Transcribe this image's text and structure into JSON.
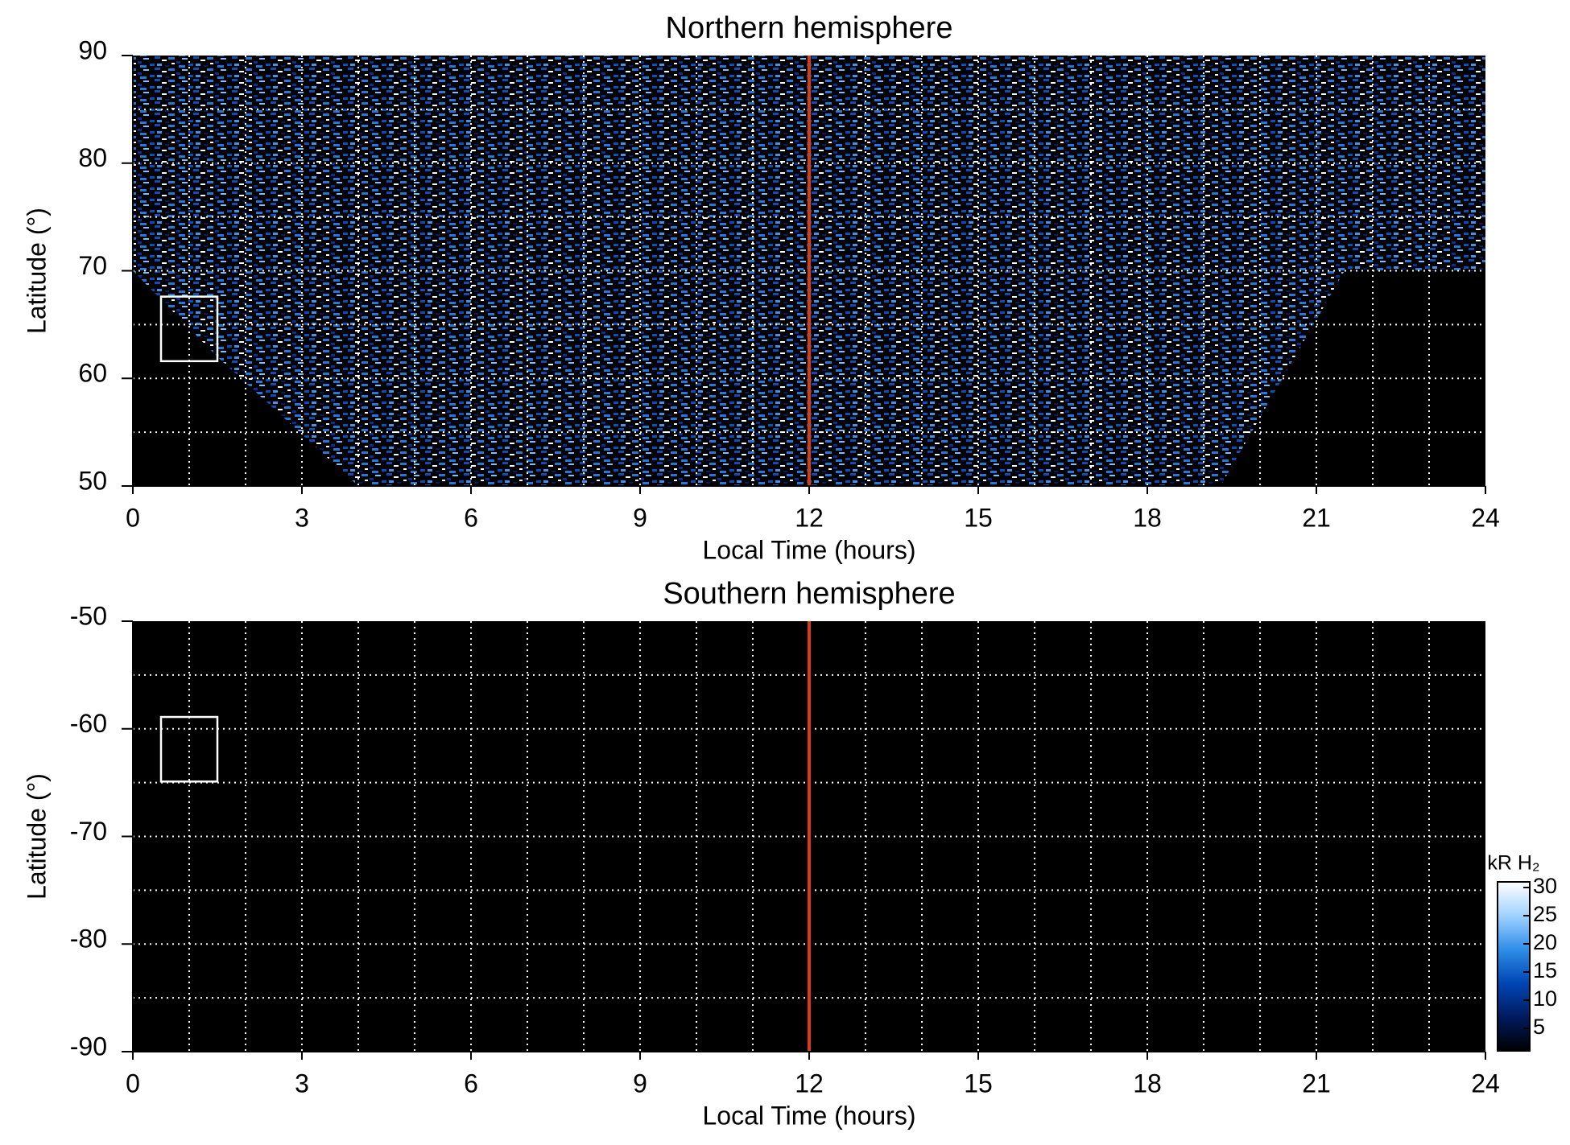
{
  "chart_data": [
    {
      "type": "heatmap",
      "title": "Northern hemisphere",
      "xlabel": "Local Time (hours)",
      "ylabel": "Latitude (°)",
      "xlim": [
        0,
        24
      ],
      "xticks": [
        0,
        3,
        6,
        9,
        12,
        15,
        18,
        21,
        24
      ],
      "ylim": [
        50,
        90
      ],
      "yticks": [
        50,
        60,
        70,
        80,
        90
      ],
      "xgrid": [
        1,
        2,
        3,
        4,
        5,
        6,
        7,
        8,
        9,
        10,
        11,
        12,
        13,
        14,
        15,
        16,
        17,
        18,
        19,
        20,
        21,
        22,
        23
      ],
      "ygrid": [
        55,
        60,
        65,
        70,
        75,
        80,
        85
      ],
      "coverage": [
        [
          0,
          70
        ],
        [
          1.5,
          62
        ],
        [
          4,
          50
        ],
        [
          19.3,
          50
        ],
        [
          21.5,
          70
        ],
        [
          24,
          70
        ],
        [
          24,
          90
        ],
        [
          0,
          90
        ]
      ],
      "vline": {
        "x": 12,
        "color": "#d93a1a"
      },
      "box": {
        "x": [
          0.5,
          1.5
        ],
        "y": [
          61.6,
          67.6
        ],
        "color": "#ffffff"
      }
    },
    {
      "type": "heatmap",
      "title": "Southern hemisphere",
      "xlabel": "Local Time (hours)",
      "ylabel": "Latitude (°)",
      "xlim": [
        0,
        24
      ],
      "xticks": [
        0,
        3,
        6,
        9,
        12,
        15,
        18,
        21,
        24
      ],
      "ylim": [
        -90,
        -50
      ],
      "yticks": [
        -90,
        -80,
        -70,
        -60,
        -50
      ],
      "xgrid": [
        1,
        2,
        3,
        4,
        5,
        6,
        7,
        8,
        9,
        10,
        11,
        12,
        13,
        14,
        15,
        16,
        17,
        18,
        19,
        20,
        21,
        22,
        23
      ],
      "ygrid": [
        -85,
        -80,
        -75,
        -70,
        -65,
        -60,
        -55
      ],
      "coverage": [],
      "vline": {
        "x": 12,
        "color": "#d93a1a"
      },
      "box": {
        "x": [
          0.5,
          1.5
        ],
        "y": [
          -64.9,
          -58.9
        ],
        "color": "#ffffff"
      },
      "colorbar": {
        "label": "kR H₂",
        "clim": [
          1,
          31
        ],
        "ticks": [
          5,
          10,
          15,
          20,
          25,
          30
        ],
        "colors": [
          "#000000",
          "#001a5e",
          "#0046b4",
          "#2f8ee8",
          "#9fd2ff",
          "#ffffff"
        ]
      }
    }
  ]
}
